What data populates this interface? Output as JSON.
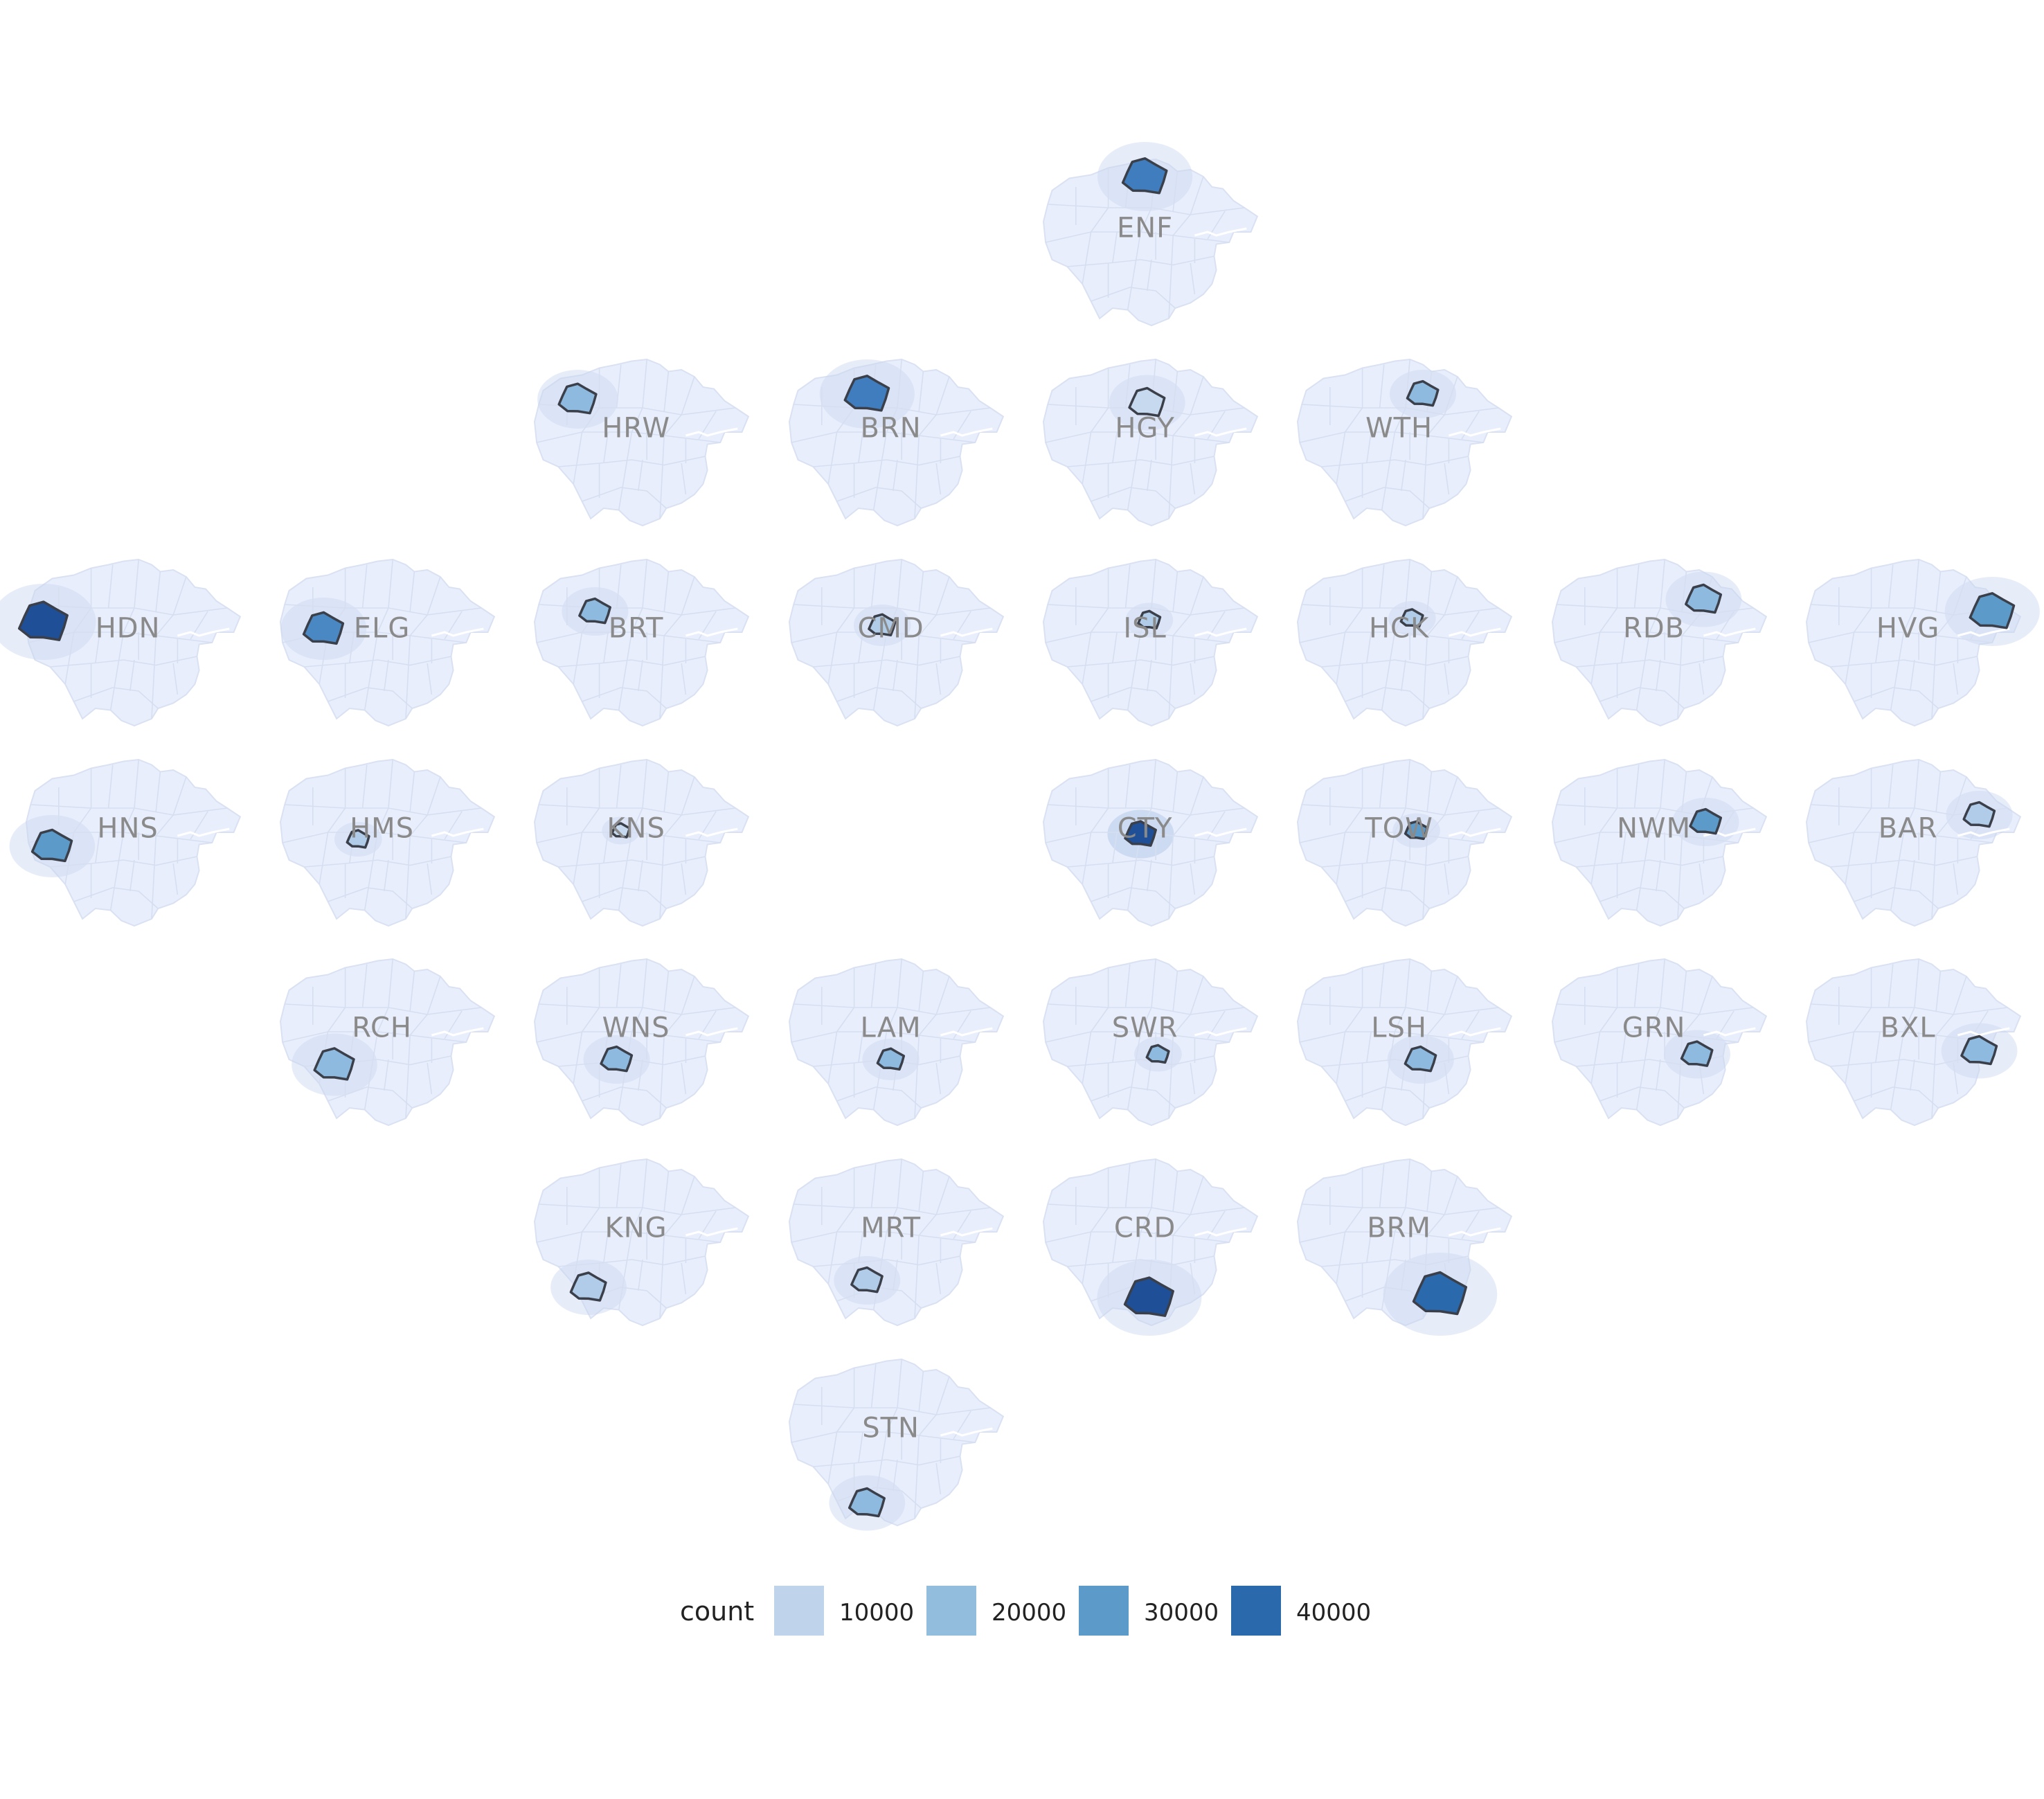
{
  "chart_data": {
    "type": "heatmap",
    "description_kind": "small-multiple choropleth of London boroughs arranged in a grid",
    "legend": {
      "title": "count",
      "entries": [
        {
          "label": "10000",
          "color": "#bfd4ea"
        },
        {
          "label": "20000",
          "color": "#93bddd"
        },
        {
          "label": "30000",
          "color": "#5b9ac9"
        },
        {
          "label": "40000",
          "color": "#2b69ad"
        }
      ],
      "placement": "bottom"
    },
    "colors": {
      "base_fill": "#e8eefb",
      "base_stroke": "#d9e1f2",
      "highlight_stroke": "#3a3f4a",
      "label": "#8a8a8a"
    },
    "panels": [
      {
        "code": "ENF",
        "row": 0,
        "col": 4,
        "fill": "#3f7dbe",
        "spot": [
          0.47,
          0.12
        ],
        "size": 0.1
      },
      {
        "code": "HRW",
        "row": 1,
        "col": 2,
        "fill": "#8ebadf",
        "spot": [
          0.2,
          0.25
        ],
        "size": 0.085
      },
      {
        "code": "BRN",
        "row": 1,
        "col": 3,
        "fill": "#3f7dbe",
        "spot": [
          0.36,
          0.22
        ],
        "size": 0.1
      },
      {
        "code": "HGY",
        "row": 1,
        "col": 4,
        "fill": "#c7d9ee",
        "spot": [
          0.48,
          0.27
        ],
        "size": 0.08
      },
      {
        "code": "WTH",
        "row": 1,
        "col": 5,
        "fill": "#8ebadf",
        "spot": [
          0.58,
          0.22
        ],
        "size": 0.07
      },
      {
        "code": "HDN",
        "row": 2,
        "col": 0,
        "fill": "#1f4f96",
        "spot": [
          0.08,
          0.38
        ],
        "size": 0.11
      },
      {
        "code": "ELG",
        "row": 2,
        "col": 1,
        "fill": "#4a88c4",
        "spot": [
          0.2,
          0.42
        ],
        "size": 0.09
      },
      {
        "code": "BRT",
        "row": 2,
        "col": 2,
        "fill": "#8ebadf",
        "spot": [
          0.28,
          0.32
        ],
        "size": 0.07
      },
      {
        "code": "CMD",
        "row": 2,
        "col": 3,
        "fill": "#b0cce8",
        "spot": [
          0.43,
          0.4
        ],
        "size": 0.06
      },
      {
        "code": "ISL",
        "row": 2,
        "col": 4,
        "fill": "#b0cce8",
        "spot": [
          0.49,
          0.37
        ],
        "size": 0.05
      },
      {
        "code": "HCK",
        "row": 2,
        "col": 5,
        "fill": "#b0cce8",
        "spot": [
          0.53,
          0.36
        ],
        "size": 0.05
      },
      {
        "code": "RDB",
        "row": 2,
        "col": 6,
        "fill": "#8ebadf",
        "spot": [
          0.7,
          0.25
        ],
        "size": 0.08
      },
      {
        "code": "HVG",
        "row": 2,
        "col": 7,
        "fill": "#5b9ac9",
        "spot": [
          0.86,
          0.32
        ],
        "size": 0.1
      },
      {
        "code": "HNS",
        "row": 3,
        "col": 0,
        "fill": "#5b9ac9",
        "spot": [
          0.12,
          0.52
        ],
        "size": 0.09
      },
      {
        "code": "HMS",
        "row": 3,
        "col": 1,
        "fill": "#b0cce8",
        "spot": [
          0.36,
          0.48
        ],
        "size": 0.05
      },
      {
        "code": "KNS",
        "row": 3,
        "col": 2,
        "fill": "#c7d9ee",
        "spot": [
          0.4,
          0.43
        ],
        "size": 0.04
      },
      {
        "code": "CTY",
        "row": 3,
        "col": 4,
        "fill": "#1f4f96",
        "spot": [
          0.45,
          0.45
        ],
        "size": 0.07
      },
      {
        "code": "TOW",
        "row": 3,
        "col": 5,
        "fill": "#5b9ac9",
        "spot": [
          0.55,
          0.43
        ],
        "size": 0.05
      },
      {
        "code": "NWM",
        "row": 3,
        "col": 6,
        "fill": "#5b9ac9",
        "spot": [
          0.71,
          0.38
        ],
        "size": 0.07
      },
      {
        "code": "BAR",
        "row": 3,
        "col": 7,
        "fill": "#b0cce8",
        "spot": [
          0.8,
          0.34
        ],
        "size": 0.07
      },
      {
        "code": "RCH",
        "row": 4,
        "col": 1,
        "fill": "#8ebadf",
        "spot": [
          0.25,
          0.63
        ],
        "size": 0.09
      },
      {
        "code": "WNS",
        "row": 4,
        "col": 2,
        "fill": "#8ebadf",
        "spot": [
          0.38,
          0.6
        ],
        "size": 0.07
      },
      {
        "code": "LAM",
        "row": 4,
        "col": 3,
        "fill": "#8ebadf",
        "spot": [
          0.47,
          0.6
        ],
        "size": 0.06
      },
      {
        "code": "SWR",
        "row": 4,
        "col": 4,
        "fill": "#8ebadf",
        "spot": [
          0.53,
          0.57
        ],
        "size": 0.05
      },
      {
        "code": "LSH",
        "row": 4,
        "col": 5,
        "fill": "#8ebadf",
        "spot": [
          0.57,
          0.6
        ],
        "size": 0.07
      },
      {
        "code": "GRN",
        "row": 4,
        "col": 6,
        "fill": "#8ebadf",
        "spot": [
          0.67,
          0.57
        ],
        "size": 0.07
      },
      {
        "code": "BXL",
        "row": 4,
        "col": 7,
        "fill": "#8ebadf",
        "spot": [
          0.8,
          0.55
        ],
        "size": 0.08
      },
      {
        "code": "KNG",
        "row": 5,
        "col": 2,
        "fill": "#b0cce8",
        "spot": [
          0.25,
          0.76
        ],
        "size": 0.08
      },
      {
        "code": "MRT",
        "row": 5,
        "col": 3,
        "fill": "#b0cce8",
        "spot": [
          0.36,
          0.72
        ],
        "size": 0.07
      },
      {
        "code": "CRD",
        "row": 5,
        "col": 4,
        "fill": "#1f4f96",
        "spot": [
          0.49,
          0.82
        ],
        "size": 0.11
      },
      {
        "code": "BRM",
        "row": 5,
        "col": 5,
        "fill": "#2b69ad",
        "spot": [
          0.66,
          0.8
        ],
        "size": 0.12
      },
      {
        "code": "STN",
        "row": 6,
        "col": 3,
        "fill": "#8ebadf",
        "spot": [
          0.36,
          0.85
        ],
        "size": 0.08
      }
    ]
  }
}
